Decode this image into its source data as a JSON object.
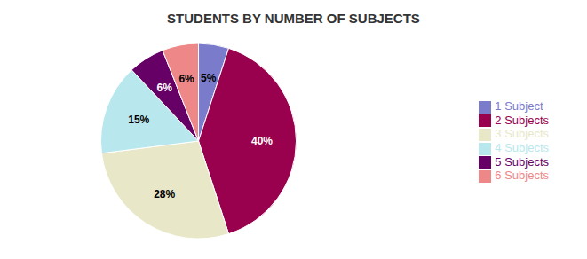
{
  "chart_data": {
    "type": "pie",
    "title": "STUDENTS BY NUMBER OF SUBJECTS",
    "categories": [
      "1 Subject",
      "2 Subjects",
      "3 Subjects",
      "4 Subjects",
      "5 Subjects",
      "6 Subjects"
    ],
    "values": [
      5,
      40,
      28,
      15,
      6,
      6
    ],
    "value_labels": [
      "5%",
      "40%",
      "28%",
      "15%",
      "6%",
      "6%"
    ],
    "colors": [
      "#7b7bcb",
      "#99004d",
      "#e8e8c8",
      "#b8e8ee",
      "#660066",
      "#ee8888"
    ],
    "data_labels": true,
    "legend": "right"
  }
}
